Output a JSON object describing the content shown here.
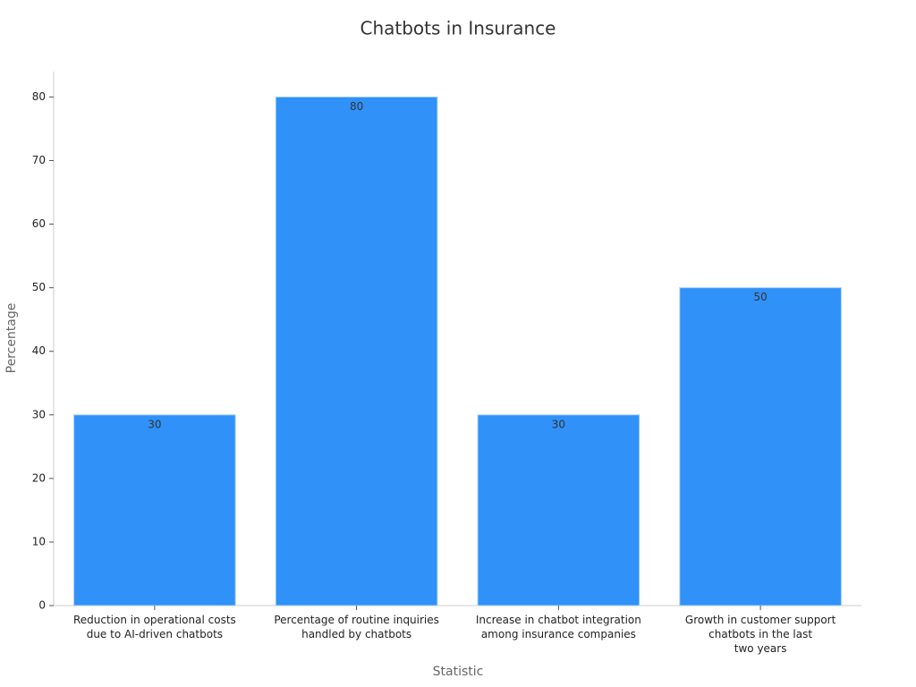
{
  "chart_data": {
    "type": "bar",
    "title": "Chatbots in Insurance",
    "x_label": "Statistic",
    "y_label": "Percentage",
    "categories": [
      "Reduction in operational costs\ndue to AI-driven chatbots",
      "Percentage of routine inquiries\nhandled by chatbots",
      "Increase in chatbot integration\namong insurance companies",
      "Growth in customer support\nchatbots in the last\ntwo years"
    ],
    "values": [
      30,
      80,
      30,
      50
    ],
    "color": "#3091f8",
    "ylim": [
      0,
      84
    ],
    "yticks": [
      0,
      10,
      20,
      30,
      40,
      50,
      60,
      70,
      80
    ],
    "grid": false
  }
}
